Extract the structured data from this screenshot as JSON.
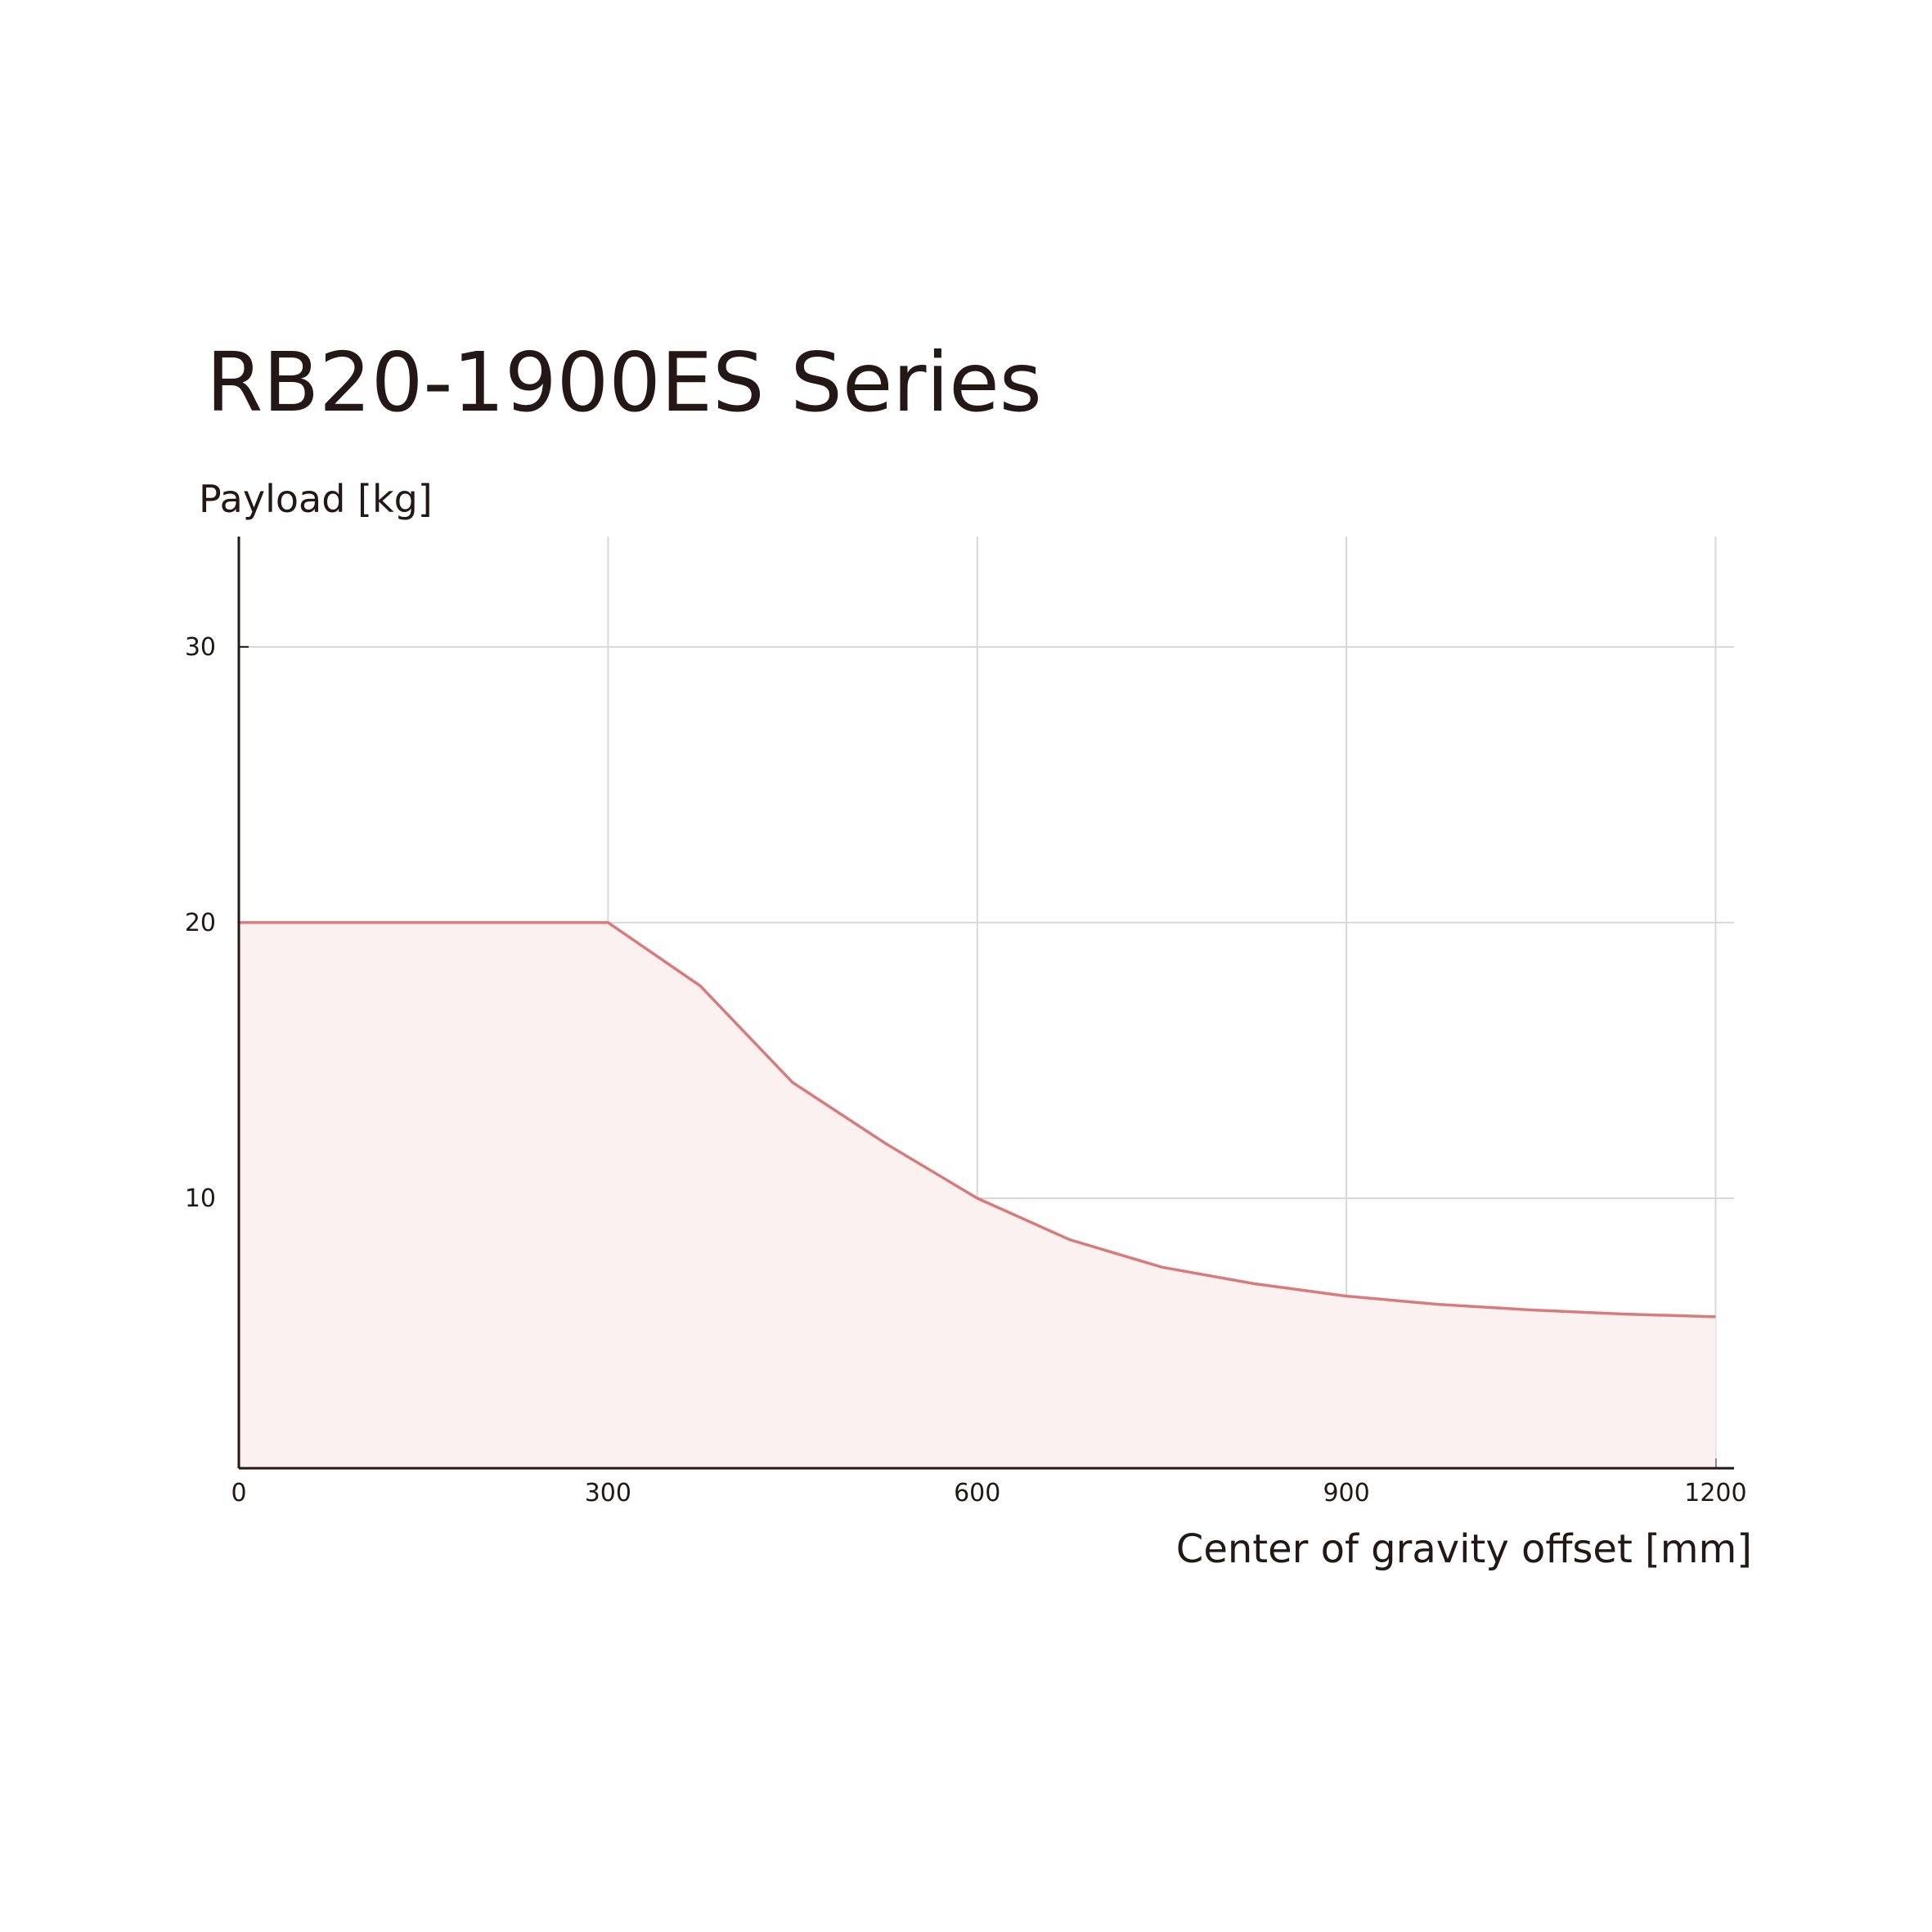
{
  "chart_data": {
    "type": "area",
    "title": "RB20-1900ES Series",
    "y_label": "Payload [kg]",
    "x_label": "Center of gravity offset [mm]",
    "series": [
      {
        "name": "RB20-1900ES",
        "color": "#d97b7b",
        "fill": "#fcf1f1",
        "x": [
          0,
          300,
          375,
          450,
          525,
          600,
          675,
          750,
          825,
          900,
          975,
          1050,
          1125,
          1200
        ],
        "values": [
          20,
          20,
          17.7,
          14.2,
          12.0,
          10,
          8.5,
          7.5,
          6.9,
          6.45,
          6.15,
          5.95,
          5.8,
          5.7
        ]
      }
    ],
    "xlim": [
      0,
      1215
    ],
    "ylim": [
      0,
      34
    ],
    "xticks": [
      0,
      300,
      600,
      900,
      1200
    ],
    "yticks": [
      10,
      20,
      30
    ],
    "grid": true
  }
}
